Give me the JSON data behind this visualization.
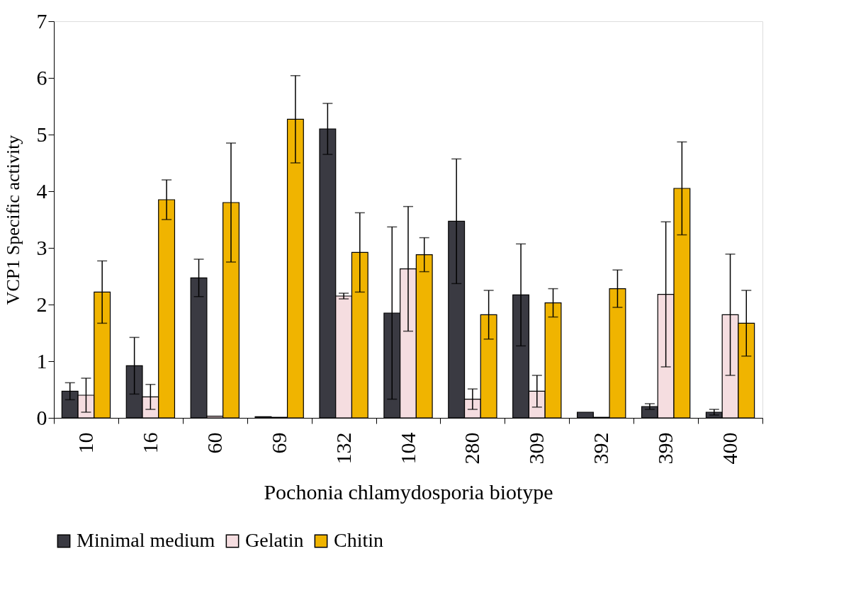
{
  "chart_data": {
    "type": "bar",
    "xlabel": "Pochonia chlamydosporia biotype",
    "ylabel": "VCP1 Specific activity",
    "categories": [
      "10",
      "16",
      "60",
      "69",
      "132",
      "104",
      "280",
      "309",
      "392",
      "399",
      "400"
    ],
    "series": [
      {
        "name": "Minimal medium",
        "color": "#3a3a42",
        "values": [
          0.47,
          0.92,
          2.47,
          0.02,
          5.1,
          1.85,
          3.47,
          2.17,
          0.1,
          0.2,
          0.1
        ],
        "errors": [
          0.15,
          0.5,
          0.33,
          null,
          0.45,
          1.52,
          1.1,
          0.9,
          null,
          0.05,
          0.05
        ]
      },
      {
        "name": "Gelatin",
        "color": "#f5dde0",
        "values": [
          0.4,
          0.37,
          0.03,
          0.01,
          2.15,
          2.63,
          0.33,
          0.47,
          0.01,
          2.18,
          1.82
        ],
        "errors": [
          0.3,
          0.22,
          null,
          null,
          0.05,
          1.1,
          0.18,
          0.28,
          null,
          1.28,
          1.07
        ]
      },
      {
        "name": "Chitin",
        "color": "#f0b400",
        "values": [
          2.22,
          3.85,
          3.8,
          5.27,
          2.92,
          2.88,
          1.82,
          2.03,
          2.28,
          4.05,
          1.67
        ],
        "errors": [
          0.55,
          0.35,
          1.05,
          0.77,
          0.7,
          0.3,
          0.43,
          0.25,
          0.33,
          0.82,
          0.58
        ]
      }
    ],
    "ylim": [
      0,
      7
    ],
    "yticks": [
      0,
      1,
      2,
      3,
      4,
      5,
      6,
      7
    ],
    "grid": false,
    "legend": "bottom"
  }
}
